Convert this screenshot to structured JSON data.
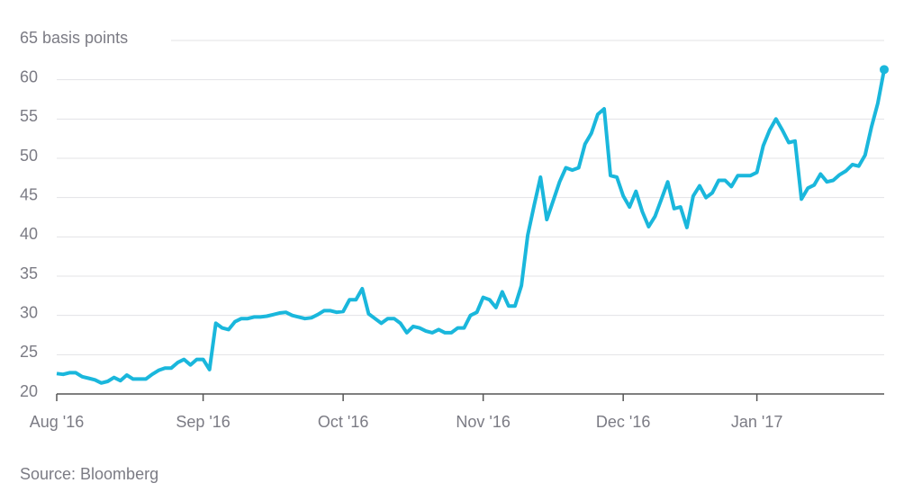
{
  "chart_data": {
    "type": "line",
    "color": "#1ab7dc",
    "categories": [
      "Aug '16",
      null,
      null,
      null,
      null,
      null,
      null,
      null,
      null,
      null,
      null,
      null,
      null,
      null,
      null,
      null,
      null,
      null,
      null,
      null,
      null,
      null,
      null,
      "Sep '16",
      null,
      null,
      null,
      null,
      null,
      null,
      null,
      null,
      null,
      null,
      null,
      null,
      null,
      null,
      null,
      null,
      null,
      null,
      null,
      null,
      null,
      "Oct '16",
      null,
      null,
      null,
      null,
      null,
      null,
      null,
      null,
      null,
      null,
      null,
      null,
      null,
      null,
      null,
      null,
      null,
      null,
      null,
      null,
      null,
      "Nov '16",
      null,
      null,
      null,
      null,
      null,
      null,
      null,
      null,
      null,
      null,
      null,
      null,
      null,
      null,
      null,
      null,
      null,
      null,
      null,
      null,
      null,
      "Dec '16",
      null,
      null,
      null,
      null,
      null,
      null,
      null,
      null,
      null,
      null,
      null,
      null,
      null,
      null,
      null,
      null,
      null,
      null,
      null,
      null,
      "Jan '17",
      null,
      null,
      null,
      null,
      null,
      null,
      null,
      null,
      null,
      null,
      null,
      null,
      null,
      null,
      null,
      null,
      null,
      null,
      null,
      null
    ],
    "values": [
      22.6,
      22.5,
      22.7,
      22.7,
      22.2,
      22.0,
      21.8,
      21.4,
      21.6,
      22.1,
      21.7,
      22.4,
      21.9,
      21.9,
      21.9,
      22.5,
      23.0,
      23.3,
      23.3,
      24.0,
      24.4,
      23.7,
      24.4,
      24.4,
      23.1,
      29.0,
      28.4,
      28.2,
      29.2,
      29.6,
      29.6,
      29.8,
      29.8,
      29.9,
      30.1,
      30.3,
      30.4,
      30.0,
      29.8,
      29.6,
      29.7,
      30.1,
      30.6,
      30.6,
      30.4,
      30.5,
      32.0,
      32.0,
      33.4,
      30.2,
      29.6,
      29.0,
      29.6,
      29.6,
      29.0,
      27.8,
      28.6,
      28.4,
      28.0,
      27.8,
      28.2,
      27.8,
      27.8,
      28.4,
      28.4,
      30.0,
      30.4,
      32.3,
      32.0,
      31.0,
      33.0,
      31.2,
      31.2,
      33.8,
      40.2,
      44.0,
      47.6,
      42.2,
      44.6,
      47.0,
      48.8,
      48.5,
      48.8,
      51.8,
      53.2,
      55.6,
      56.3,
      47.8,
      47.6,
      45.2,
      43.8,
      45.8,
      43.2,
      41.3,
      42.6,
      44.8,
      47.0,
      43.6,
      43.8,
      41.2,
      45.2,
      46.5,
      45.0,
      45.6,
      47.2,
      47.2,
      46.4,
      47.8,
      47.8,
      47.8,
      48.2,
      51.6,
      53.6,
      55.0,
      53.6,
      52.0,
      52.2,
      44.8,
      46.2,
      46.6,
      48.0,
      47.0,
      47.2,
      47.9,
      48.4,
      49.2,
      49.0,
      50.4,
      54.0,
      57.0,
      61.3
    ],
    "ylim": [
      20,
      65
    ],
    "yticks": [
      20,
      25,
      30,
      35,
      40,
      45,
      50,
      55,
      60,
      {
        "value": 65,
        "label": "65 basis points"
      }
    ],
    "grid": true,
    "source": "Source: Bloomberg"
  }
}
